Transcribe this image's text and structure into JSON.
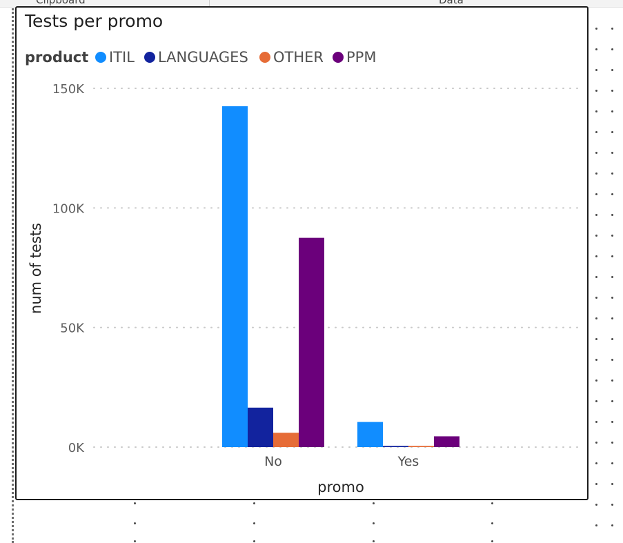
{
  "ribbon": {
    "left_label": "Clipboard",
    "right_label": "Data"
  },
  "chart_data": {
    "type": "bar",
    "title": "Tests per promo",
    "legend_title": "product",
    "xlabel": "promo",
    "ylabel": "num of tests",
    "categories": [
      "No",
      "Yes"
    ],
    "ylim": [
      0,
      150000
    ],
    "yticks": [
      {
        "value": 0,
        "label": "0K"
      },
      {
        "value": 50000,
        "label": "50K"
      },
      {
        "value": 100000,
        "label": "100K"
      },
      {
        "value": 150000,
        "label": "150K"
      }
    ],
    "grid": true,
    "legend_position": "top-left",
    "series": [
      {
        "name": "ITIL",
        "color": "#118DFF",
        "values": [
          142500,
          10500
        ]
      },
      {
        "name": "LANGUAGES",
        "color": "#12239E",
        "values": [
          16500,
          500
        ]
      },
      {
        "name": "OTHER",
        "color": "#E66C37",
        "values": [
          6000,
          500
        ]
      },
      {
        "name": "PPM",
        "color": "#6B007B",
        "values": [
          87500,
          4500
        ]
      }
    ]
  }
}
